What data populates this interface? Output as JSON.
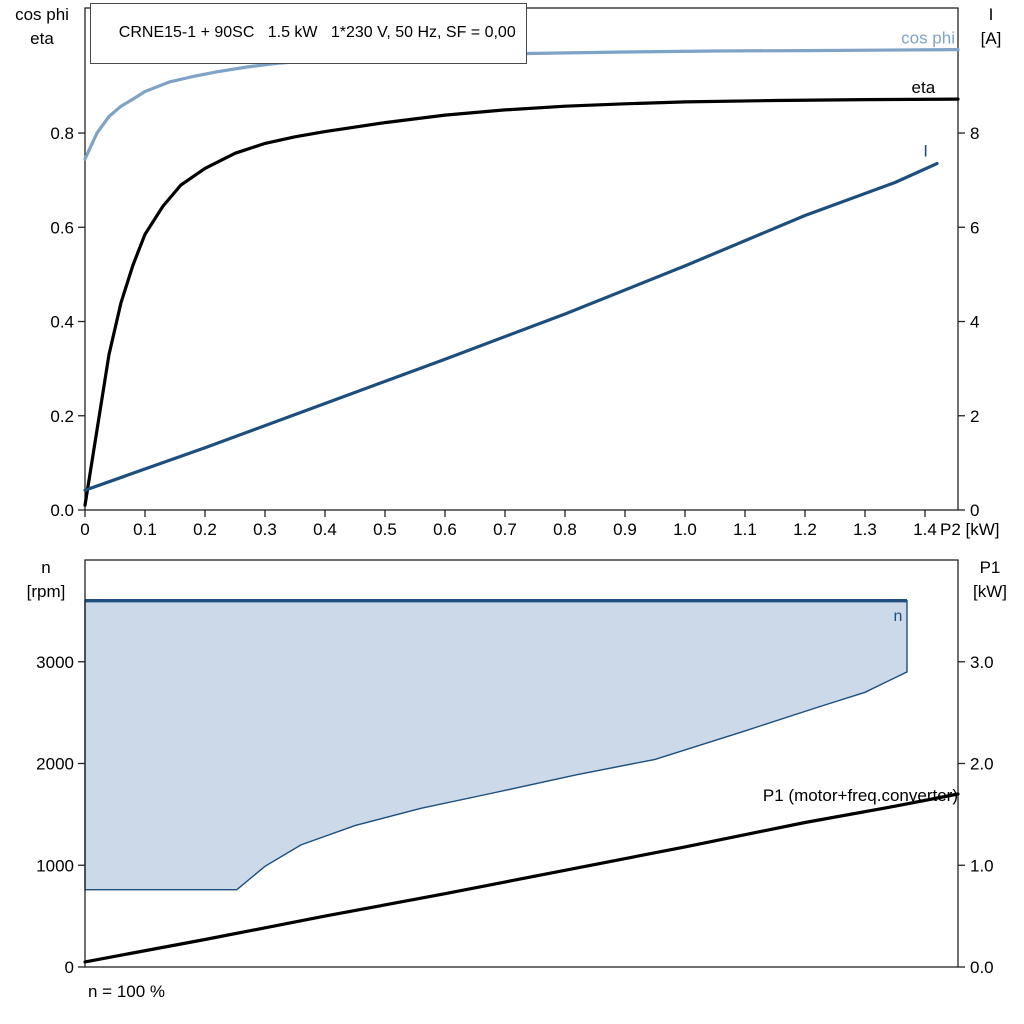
{
  "title": "CRNE15-1 + 90SC   1.5 kW   1*230 V, 50 Hz, SF = 0,00",
  "footer_note": "n = 100 %",
  "colors": {
    "light_blue": "#7FA3C6",
    "dark_blue": "#1C4F7D",
    "black": "#000000",
    "envelope_fill": "#CBD9E9",
    "frame": "#222222"
  },
  "chart_data": [
    {
      "id": "motor-curves",
      "type": "line",
      "x_axis": {
        "label": "P2 [kW]",
        "min": 0,
        "max": 1.455,
        "ticks": [
          [
            0,
            "0"
          ],
          [
            0.1,
            "0.1"
          ],
          [
            0.2,
            "0.2"
          ],
          [
            0.3,
            "0.3"
          ],
          [
            0.4,
            "0.4"
          ],
          [
            0.5,
            "0.5"
          ],
          [
            0.6,
            "0.6"
          ],
          [
            0.7,
            "0.7"
          ],
          [
            0.8,
            "0.8"
          ],
          [
            0.9,
            "0.9"
          ],
          [
            1,
            "1.0"
          ],
          [
            1.1,
            "1.1"
          ],
          [
            1.2,
            "1.2"
          ],
          [
            1.3,
            "1.3"
          ],
          [
            1.4,
            "1.4"
          ]
        ]
      },
      "left_axis": {
        "title_lines": [
          "cos phi",
          "eta"
        ],
        "min": 0,
        "max": 1.0653,
        "ticks": [
          [
            0,
            "0.0"
          ],
          [
            0.2,
            "0.2"
          ],
          [
            0.4,
            "0.4"
          ],
          [
            0.6,
            "0.6"
          ],
          [
            0.8,
            "0.8"
          ]
        ]
      },
      "right_axis": {
        "title_lines": [
          "I",
          "[A]"
        ],
        "min": 0,
        "max": 10.653,
        "ticks": [
          [
            0,
            "0"
          ],
          [
            2,
            "2"
          ],
          [
            4,
            "4"
          ],
          [
            6,
            "6"
          ],
          [
            8,
            "8"
          ]
        ]
      },
      "series": [
        {
          "name": "cos phi",
          "axis": "left",
          "color": "light_blue",
          "width": 3.2,
          "points": [
            [
              0,
              0.745
            ],
            [
              0.02,
              0.8
            ],
            [
              0.04,
              0.835
            ],
            [
              0.06,
              0.857
            ],
            [
              0.08,
              0.872
            ],
            [
              0.1,
              0.888
            ],
            [
              0.14,
              0.908
            ],
            [
              0.18,
              0.92
            ],
            [
              0.22,
              0.93
            ],
            [
              0.27,
              0.94
            ],
            [
              0.32,
              0.948
            ],
            [
              0.4,
              0.955
            ],
            [
              0.5,
              0.961
            ],
            [
              0.6,
              0.965
            ],
            [
              0.75,
              0.969
            ],
            [
              0.9,
              0.972
            ],
            [
              1.05,
              0.974
            ],
            [
              1.2,
              0.975
            ],
            [
              1.455,
              0.977
            ]
          ]
        },
        {
          "name": "eta",
          "axis": "left",
          "color": "black",
          "width": 3.2,
          "points": [
            [
              0,
              0.01
            ],
            [
              0.02,
              0.17
            ],
            [
              0.04,
              0.33
            ],
            [
              0.06,
              0.44
            ],
            [
              0.08,
              0.52
            ],
            [
              0.1,
              0.585
            ],
            [
              0.13,
              0.645
            ],
            [
              0.16,
              0.69
            ],
            [
              0.2,
              0.725
            ],
            [
              0.25,
              0.757
            ],
            [
              0.3,
              0.778
            ],
            [
              0.35,
              0.792
            ],
            [
              0.4,
              0.803
            ],
            [
              0.5,
              0.822
            ],
            [
              0.6,
              0.838
            ],
            [
              0.7,
              0.849
            ],
            [
              0.8,
              0.857
            ],
            [
              0.9,
              0.862
            ],
            [
              1,
              0.866
            ],
            [
              1.15,
              0.869
            ],
            [
              1.3,
              0.871
            ],
            [
              1.455,
              0.872
            ]
          ]
        },
        {
          "name": "I",
          "axis": "right",
          "color": "dark_blue",
          "width": 3.2,
          "points": [
            [
              0,
              0.42
            ],
            [
              0.2,
              1.32
            ],
            [
              0.4,
              2.26
            ],
            [
              0.6,
              3.2
            ],
            [
              0.8,
              4.16
            ],
            [
              1,
              5.18
            ],
            [
              1.2,
              6.25
            ],
            [
              1.35,
              6.95
            ],
            [
              1.42,
              7.35
            ]
          ]
        }
      ],
      "labels": [
        {
          "text": "cos phi",
          "color": "light_blue",
          "axis": "left",
          "x": 1.45,
          "y": 0.99,
          "anchor": "end",
          "size": 17
        },
        {
          "text": "eta",
          "color": "black",
          "axis": "left",
          "x": 1.417,
          "y": 0.885,
          "anchor": "end",
          "size": 17
        },
        {
          "text": "I",
          "color": "dark_blue",
          "axis": "right",
          "x": 1.405,
          "y": 7.5,
          "anchor": "end",
          "size": 17
        }
      ]
    },
    {
      "id": "speed-and-p1",
      "type": "area",
      "x_axis": {
        "label": "",
        "min": 0,
        "max": 1.455,
        "ticks": []
      },
      "left_axis": {
        "title_lines": [
          "n",
          "[rpm]"
        ],
        "min": 0,
        "max": 4000,
        "ticks": [
          [
            0,
            "0"
          ],
          [
            1000,
            "1000"
          ],
          [
            2000,
            "2000"
          ],
          [
            3000,
            "3000"
          ]
        ]
      },
      "right_axis": {
        "title_lines": [
          "P1",
          "[kW]"
        ],
        "min": 0,
        "max": 4,
        "ticks": [
          [
            0,
            "0.0"
          ],
          [
            1,
            "1.0"
          ],
          [
            2,
            "2.0"
          ],
          [
            3,
            "3.0"
          ]
        ]
      },
      "envelope": {
        "name": "speed operating range",
        "fill": "envelope_fill",
        "stroke": "dark_blue",
        "max_speed_rpm": 3600,
        "min_speed_rpm": 760,
        "points": [
          [
            0,
            760
          ],
          [
            0.253,
            760
          ],
          [
            0.3,
            990
          ],
          [
            0.36,
            1200
          ],
          [
            0.45,
            1390
          ],
          [
            0.56,
            1560
          ],
          [
            0.68,
            1710
          ],
          [
            0.82,
            1890
          ],
          [
            0.95,
            2040
          ],
          [
            1.1,
            2320
          ],
          [
            1.22,
            2550
          ],
          [
            1.3,
            2700
          ],
          [
            1.37,
            2900
          ],
          [
            1.37,
            3600
          ],
          [
            0,
            3600
          ]
        ],
        "top_line": [
          [
            0,
            3600
          ],
          [
            1.37,
            3600
          ]
        ]
      },
      "series": [
        {
          "name": "P1 (motor+freq.converter)",
          "axis": "right",
          "color": "black",
          "width": 3.2,
          "points": [
            [
              0,
              0.05
            ],
            [
              0.2,
              0.27
            ],
            [
              0.4,
              0.5
            ],
            [
              0.6,
              0.72
            ],
            [
              0.8,
              0.95
            ],
            [
              1,
              1.18
            ],
            [
              1.2,
              1.42
            ],
            [
              1.35,
              1.58
            ],
            [
              1.455,
              1.7
            ]
          ]
        }
      ],
      "labels": [
        {
          "text": "n",
          "color": "dark_blue",
          "axis": "left",
          "x": 1.355,
          "y": 3400,
          "anchor": "middle",
          "size": 16
        },
        {
          "text": "P1 (motor+freq.converter)",
          "color": "black",
          "axis": "right",
          "x": 1.455,
          "y": 1.63,
          "anchor": "end",
          "size": 17
        }
      ]
    }
  ]
}
